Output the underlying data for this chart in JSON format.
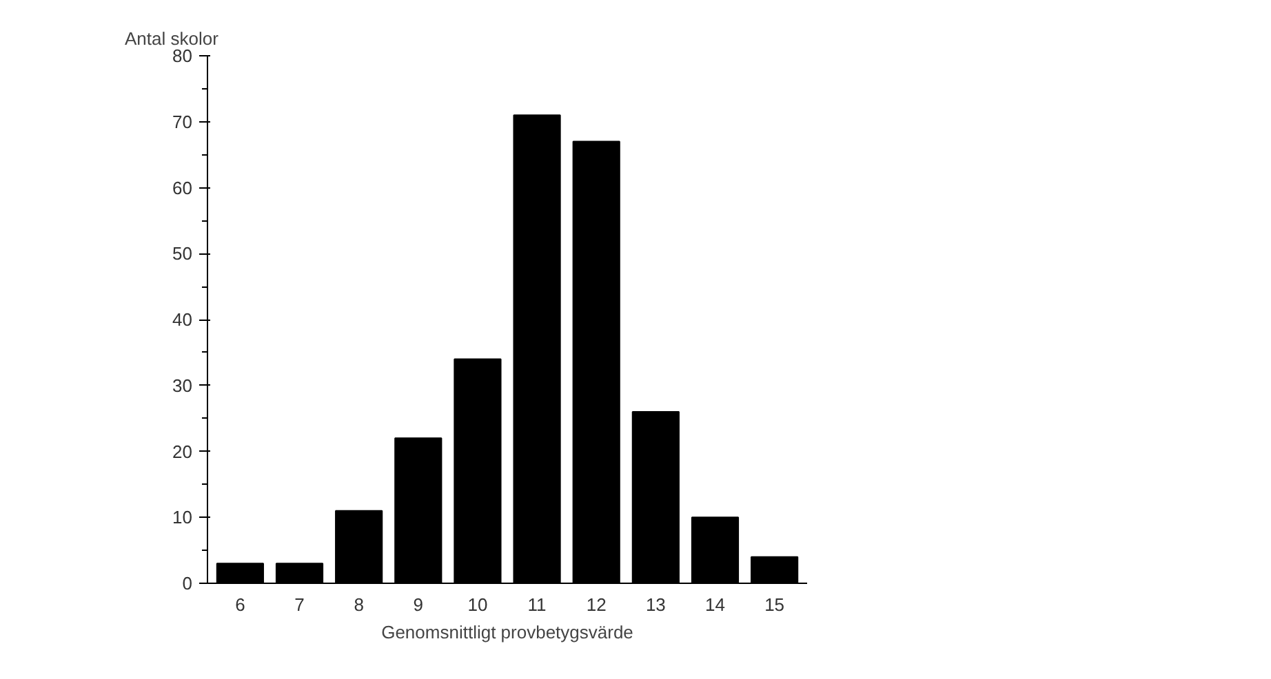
{
  "chart_data": {
    "type": "bar",
    "xlabel": "Genomsnittligt provbetygsvärde",
    "ylabel": "Antal skolor",
    "categories": [
      "6",
      "7",
      "8",
      "9",
      "10",
      "11",
      "12",
      "13",
      "14",
      "15"
    ],
    "values": [
      3,
      3,
      11,
      22,
      34,
      71,
      67,
      26,
      10,
      4
    ],
    "color": "#000000",
    "ylim": [
      0,
      80
    ],
    "yticks": [
      0,
      10,
      20,
      30,
      40,
      50,
      60,
      70,
      80
    ],
    "grid": false
  }
}
